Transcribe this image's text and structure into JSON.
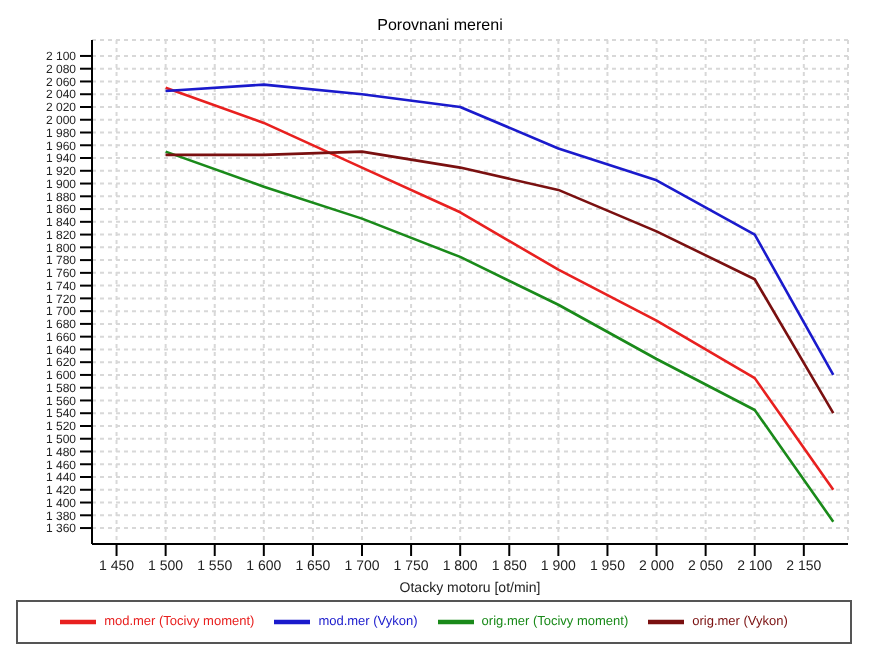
{
  "chart_data": {
    "type": "line",
    "title": "Porovnani mereni",
    "xlabel": "Otacky motoru [ot/min]",
    "x": [
      1500,
      1600,
      1700,
      1800,
      1900,
      2000,
      2100,
      2180
    ],
    "series": [
      {
        "name": "mod.mer  (Tocivy moment)",
        "color": "#e8201f",
        "values": [
          2050,
          1995,
          1925,
          1855,
          1765,
          1685,
          1595,
          1420
        ]
      },
      {
        "name": "mod.mer  (Vykon)",
        "color": "#1a1acc",
        "values": [
          2045,
          2055,
          2040,
          2020,
          1955,
          1905,
          1820,
          1600
        ]
      },
      {
        "name": "orig.mer  (Tocivy moment)",
        "color": "#1a8a1a",
        "values": [
          1950,
          1895,
          1845,
          1785,
          1710,
          1625,
          1545,
          1370
        ]
      },
      {
        "name": "orig.mer  (Vykon)",
        "color": "#7a1010",
        "values": [
          1945,
          1945,
          1950,
          1925,
          1890,
          1825,
          1750,
          1540
        ]
      }
    ],
    "xlim": [
      1425,
      2195
    ],
    "xticks": [
      {
        "value": 1450,
        "label": "1 450"
      },
      {
        "value": 1500,
        "label": "1 500"
      },
      {
        "value": 1550,
        "label": "1 550"
      },
      {
        "value": 1600,
        "label": "1 600"
      },
      {
        "value": 1650,
        "label": "1 650"
      },
      {
        "value": 1700,
        "label": "1 700"
      },
      {
        "value": 1750,
        "label": "1 750"
      },
      {
        "value": 1800,
        "label": "1 800"
      },
      {
        "value": 1850,
        "label": "1 850"
      },
      {
        "value": 1900,
        "label": "1 900"
      },
      {
        "value": 1950,
        "label": "1 950"
      },
      {
        "value": 2000,
        "label": "2 000"
      },
      {
        "value": 2050,
        "label": "2 050"
      },
      {
        "value": 2100,
        "label": "2 100"
      },
      {
        "value": 2150,
        "label": "2 150"
      }
    ],
    "ylim": [
      1335,
      2125
    ],
    "yticks": [
      {
        "value": 1360,
        "label": "1 360"
      },
      {
        "value": 1380,
        "label": "1 380"
      },
      {
        "value": 1400,
        "label": "1 400"
      },
      {
        "value": 1420,
        "label": "1 420"
      },
      {
        "value": 1440,
        "label": "1 440"
      },
      {
        "value": 1460,
        "label": "1 460"
      },
      {
        "value": 1480,
        "label": "1 480"
      },
      {
        "value": 1500,
        "label": "1 500"
      },
      {
        "value": 1520,
        "label": "1 520"
      },
      {
        "value": 1540,
        "label": "1 540"
      },
      {
        "value": 1560,
        "label": "1 560"
      },
      {
        "value": 1580,
        "label": "1 580"
      },
      {
        "value": 1600,
        "label": "1 600"
      },
      {
        "value": 1620,
        "label": "1 620"
      },
      {
        "value": 1640,
        "label": "1 640"
      },
      {
        "value": 1660,
        "label": "1 660"
      },
      {
        "value": 1680,
        "label": "1 680"
      },
      {
        "value": 1700,
        "label": "1 700"
      },
      {
        "value": 1720,
        "label": "1 720"
      },
      {
        "value": 1740,
        "label": "1 740"
      },
      {
        "value": 1760,
        "label": "1 760"
      },
      {
        "value": 1780,
        "label": "1 780"
      },
      {
        "value": 1800,
        "label": "1 800"
      },
      {
        "value": 1820,
        "label": "1 820"
      },
      {
        "value": 1840,
        "label": "1 840"
      },
      {
        "value": 1860,
        "label": "1 860"
      },
      {
        "value": 1880,
        "label": "1 880"
      },
      {
        "value": 1900,
        "label": "1 900"
      },
      {
        "value": 1920,
        "label": "1 920"
      },
      {
        "value": 1940,
        "label": "1 940"
      },
      {
        "value": 1960,
        "label": "1 960"
      },
      {
        "value": 1980,
        "label": "1 980"
      },
      {
        "value": 2000,
        "label": "2 000"
      },
      {
        "value": 2020,
        "label": "2 020"
      },
      {
        "value": 2040,
        "label": "2 040"
      },
      {
        "value": 2060,
        "label": "2 060"
      },
      {
        "value": 2080,
        "label": "2 080"
      },
      {
        "value": 2100,
        "label": "2 100"
      }
    ],
    "grid": true,
    "legend": "bottom",
    "marker": "none",
    "line_style": "solid"
  }
}
